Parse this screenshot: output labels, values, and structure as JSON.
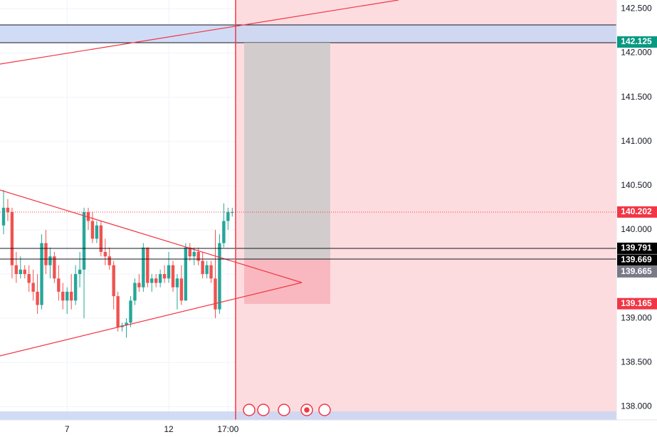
{
  "chart_data": {
    "type": "candlestick",
    "categories": [
      null,
      null,
      null,
      null,
      null,
      null,
      null,
      null,
      null,
      null,
      null,
      null,
      null,
      null,
      null,
      "7",
      null,
      null,
      null,
      null,
      null,
      null,
      null,
      null,
      null,
      null,
      null,
      null,
      null,
      null,
      null,
      null,
      null,
      null,
      null,
      null,
      null,
      null,
      null,
      "12",
      null,
      null,
      null,
      null,
      null,
      null,
      null,
      null,
      null,
      null,
      null,
      null,
      null,
      "17:00",
      null
    ],
    "open": [
      140.05,
      140.25,
      140.2,
      139.6,
      139.5,
      139.55,
      139.5,
      139.4,
      139.3,
      139.15,
      139.85,
      139.6,
      139.7,
      139.45,
      139.3,
      139.2,
      139.3,
      139.2,
      139.5,
      139.55,
      140.2,
      140.1,
      139.9,
      140.05,
      139.75,
      139.7,
      139.6,
      139.25,
      138.9,
      138.92,
      138.95,
      139.2,
      139.4,
      139.35,
      139.8,
      139.4,
      139.45,
      139.4,
      139.5,
      139.45,
      139.6,
      139.35,
      139.45,
      139.2,
      139.8,
      139.7,
      139.75,
      139.65,
      139.5,
      139.6,
      139.45,
      139.1,
      139.85,
      140.1,
      140.2
    ],
    "high": [
      140.45,
      140.35,
      140.25,
      139.75,
      139.7,
      139.6,
      139.6,
      139.55,
      139.5,
      139.95,
      140.0,
      139.8,
      139.75,
      139.6,
      139.4,
      139.35,
      139.5,
      139.6,
      139.75,
      140.25,
      140.25,
      140.2,
      140.1,
      140.1,
      139.9,
      139.8,
      139.65,
      139.3,
      138.95,
      139.0,
      139.25,
      139.45,
      139.5,
      139.85,
      139.8,
      139.5,
      139.5,
      139.55,
      139.6,
      139.75,
      139.65,
      139.5,
      139.6,
      139.85,
      139.85,
      139.8,
      139.8,
      139.75,
      139.65,
      139.65,
      140.0,
      139.95,
      140.3,
      140.25,
      140.25
    ],
    "low": [
      139.95,
      140.1,
      139.45,
      139.4,
      139.45,
      139.45,
      139.3,
      139.2,
      139.05,
      139.1,
      139.5,
      139.45,
      139.4,
      139.2,
      139.1,
      139.05,
      139.1,
      139.15,
      139.35,
      139.0,
      140.0,
      139.85,
      139.85,
      139.7,
      139.6,
      139.55,
      139.1,
      138.85,
      138.85,
      138.78,
      138.9,
      139.15,
      139.3,
      139.3,
      139.35,
      139.3,
      139.35,
      139.35,
      139.4,
      139.4,
      139.3,
      139.1,
      139.15,
      139.2,
      139.65,
      139.6,
      139.6,
      139.45,
      139.45,
      139.4,
      139.0,
      139.05,
      139.8,
      140.0,
      140.15
    ],
    "close": [
      140.25,
      140.2,
      139.6,
      139.5,
      139.55,
      139.5,
      139.4,
      139.3,
      139.15,
      139.85,
      139.6,
      139.7,
      139.45,
      139.3,
      139.2,
      139.3,
      139.2,
      139.5,
      139.55,
      140.2,
      140.1,
      139.9,
      140.05,
      139.75,
      139.7,
      139.6,
      139.25,
      138.9,
      138.92,
      138.95,
      139.2,
      139.4,
      139.35,
      139.8,
      139.4,
      139.45,
      139.4,
      139.5,
      139.45,
      139.6,
      139.35,
      139.45,
      139.2,
      139.8,
      139.7,
      139.75,
      139.65,
      139.5,
      139.6,
      139.45,
      139.1,
      139.85,
      140.1,
      140.2,
      140.2
    ],
    "up_color": "#26a69a",
    "down_color": "#ef5350",
    "ylim": [
      137.85,
      142.6
    ],
    "yticks": [
      {
        "value": 142.5,
        "label": "142.500"
      },
      {
        "value": 142,
        "label": "142.000"
      },
      {
        "value": 141.5,
        "label": "141.500"
      },
      {
        "value": 141,
        "label": "141.000"
      },
      {
        "value": 140.5,
        "label": "140.500"
      },
      {
        "value": 140,
        "label": "140.000"
      },
      {
        "value": 139.5,
        "label": "139.500"
      },
      {
        "value": 139,
        "label": "139.000"
      },
      {
        "value": 138.5,
        "label": "138.500"
      },
      {
        "value": 138,
        "label": "138.000"
      }
    ],
    "grid": true,
    "price_tags": [
      {
        "value": 142.125,
        "color": "#089981"
      },
      {
        "value": 140.202,
        "color": "#f23645"
      },
      {
        "value": 139.791,
        "color": "#000000"
      },
      {
        "value": 139.669,
        "color": "#000000"
      },
      {
        "value": 139.665,
        "color": "#787b86"
      },
      {
        "value": 139.165,
        "color": "#f23645"
      }
    ]
  }
}
